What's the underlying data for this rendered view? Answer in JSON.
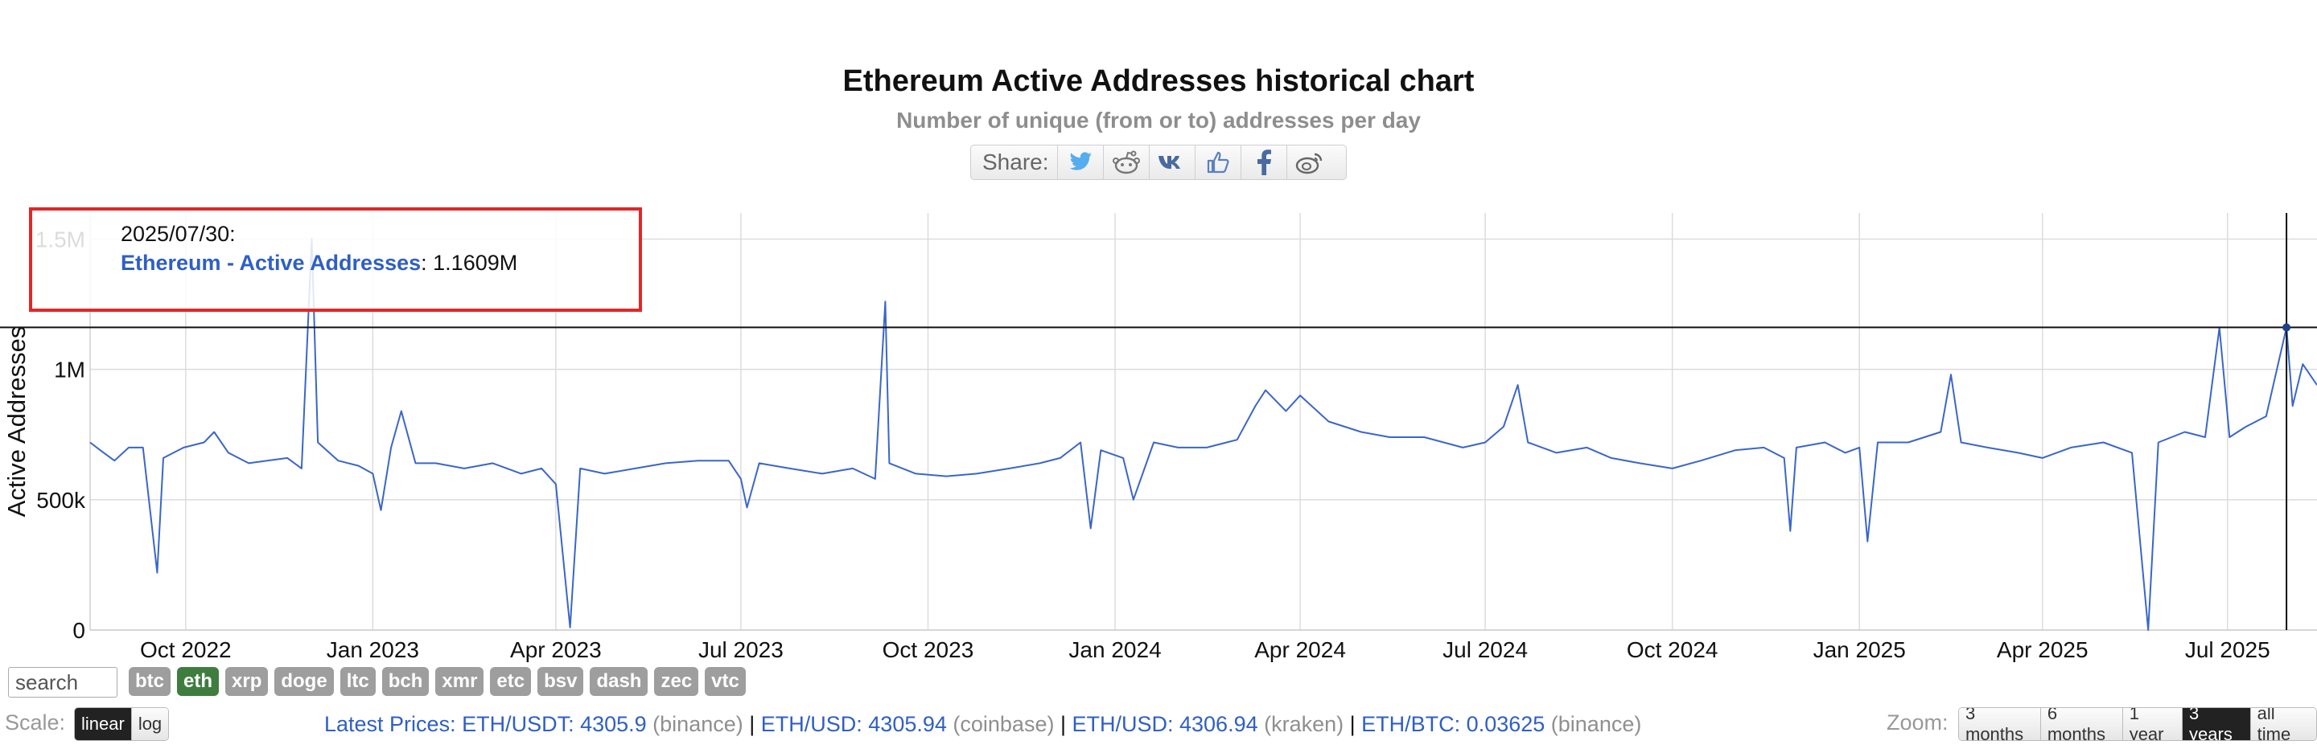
{
  "chart_data": {
    "type": "line",
    "title": "Ethereum Active Addresses historical chart",
    "subtitle": "Number of unique (from or to) addresses per day",
    "ylabel": "Active Addresses",
    "xlabel": "",
    "ylim": [
      0,
      1600000
    ],
    "yticks": [
      {
        "value": 0,
        "label": "0"
      },
      {
        "value": 500000,
        "label": "500k"
      },
      {
        "value": 1000000,
        "label": "1M"
      },
      {
        "value": 1500000,
        "label": "1.5M"
      }
    ],
    "xrange": [
      "2022-08-15",
      "2025-08-14"
    ],
    "xticks": [
      {
        "date": "2022-10-01",
        "label": "Oct 2022"
      },
      {
        "date": "2023-01-01",
        "label": "Jan 2023"
      },
      {
        "date": "2023-04-01",
        "label": "Apr 2023"
      },
      {
        "date": "2023-07-01",
        "label": "Jul 2023"
      },
      {
        "date": "2023-10-01",
        "label": "Oct 2023"
      },
      {
        "date": "2024-01-01",
        "label": "Jan 2024"
      },
      {
        "date": "2024-04-01",
        "label": "Apr 2024"
      },
      {
        "date": "2024-07-01",
        "label": "Jul 2024"
      },
      {
        "date": "2024-10-01",
        "label": "Oct 2024"
      },
      {
        "date": "2025-01-01",
        "label": "Jan 2025"
      },
      {
        "date": "2025-04-01",
        "label": "Apr 2025"
      },
      {
        "date": "2025-07-01",
        "label": "Jul 2025"
      }
    ],
    "grid": true,
    "series": [
      {
        "name": "Ethereum - Active Addresses",
        "color": "#3a66c9",
        "points": [
          [
            "2022-08-15",
            720000
          ],
          [
            "2022-08-20",
            690000
          ],
          [
            "2022-08-27",
            650000
          ],
          [
            "2022-09-03",
            700000
          ],
          [
            "2022-09-10",
            700000
          ],
          [
            "2022-09-17",
            220000
          ],
          [
            "2022-09-20",
            660000
          ],
          [
            "2022-09-30",
            700000
          ],
          [
            "2022-10-10",
            720000
          ],
          [
            "2022-10-15",
            760000
          ],
          [
            "2022-10-22",
            680000
          ],
          [
            "2022-11-01",
            640000
          ],
          [
            "2022-11-10",
            650000
          ],
          [
            "2022-11-20",
            660000
          ],
          [
            "2022-11-27",
            620000
          ],
          [
            "2022-12-02",
            1500000
          ],
          [
            "2022-12-05",
            720000
          ],
          [
            "2022-12-15",
            650000
          ],
          [
            "2022-12-25",
            630000
          ],
          [
            "2023-01-01",
            600000
          ],
          [
            "2023-01-05",
            460000
          ],
          [
            "2023-01-10",
            700000
          ],
          [
            "2023-01-15",
            840000
          ],
          [
            "2023-01-22",
            640000
          ],
          [
            "2023-02-01",
            640000
          ],
          [
            "2023-02-15",
            620000
          ],
          [
            "2023-03-01",
            640000
          ],
          [
            "2023-03-15",
            600000
          ],
          [
            "2023-03-25",
            620000
          ],
          [
            "2023-04-01",
            560000
          ],
          [
            "2023-04-08",
            10000
          ],
          [
            "2023-04-13",
            620000
          ],
          [
            "2023-04-25",
            600000
          ],
          [
            "2023-05-10",
            620000
          ],
          [
            "2023-05-25",
            640000
          ],
          [
            "2023-06-10",
            650000
          ],
          [
            "2023-06-25",
            650000
          ],
          [
            "2023-07-01",
            580000
          ],
          [
            "2023-07-04",
            470000
          ],
          [
            "2023-07-10",
            640000
          ],
          [
            "2023-07-25",
            620000
          ],
          [
            "2023-08-10",
            600000
          ],
          [
            "2023-08-25",
            620000
          ],
          [
            "2023-09-05",
            580000
          ],
          [
            "2023-09-10",
            1260000
          ],
          [
            "2023-09-12",
            640000
          ],
          [
            "2023-09-25",
            600000
          ],
          [
            "2023-10-10",
            590000
          ],
          [
            "2023-10-25",
            600000
          ],
          [
            "2023-11-10",
            620000
          ],
          [
            "2023-11-25",
            640000
          ],
          [
            "2023-12-05",
            660000
          ],
          [
            "2023-12-15",
            720000
          ],
          [
            "2023-12-20",
            390000
          ],
          [
            "2023-12-25",
            690000
          ],
          [
            "2024-01-05",
            660000
          ],
          [
            "2024-01-10",
            500000
          ],
          [
            "2024-01-20",
            720000
          ],
          [
            "2024-02-01",
            700000
          ],
          [
            "2024-02-15",
            700000
          ],
          [
            "2024-03-01",
            730000
          ],
          [
            "2024-03-10",
            860000
          ],
          [
            "2024-03-15",
            920000
          ],
          [
            "2024-03-25",
            840000
          ],
          [
            "2024-04-01",
            900000
          ],
          [
            "2024-04-15",
            800000
          ],
          [
            "2024-05-01",
            760000
          ],
          [
            "2024-05-15",
            740000
          ],
          [
            "2024-06-01",
            740000
          ],
          [
            "2024-06-20",
            700000
          ],
          [
            "2024-07-01",
            720000
          ],
          [
            "2024-07-10",
            780000
          ],
          [
            "2024-07-17",
            940000
          ],
          [
            "2024-07-22",
            720000
          ],
          [
            "2024-08-05",
            680000
          ],
          [
            "2024-08-20",
            700000
          ],
          [
            "2024-09-01",
            660000
          ],
          [
            "2024-09-15",
            640000
          ],
          [
            "2024-10-01",
            620000
          ],
          [
            "2024-10-15",
            650000
          ],
          [
            "2024-11-01",
            690000
          ],
          [
            "2024-11-15",
            700000
          ],
          [
            "2024-11-25",
            660000
          ],
          [
            "2024-11-28",
            380000
          ],
          [
            "2024-12-01",
            700000
          ],
          [
            "2024-12-15",
            720000
          ],
          [
            "2024-12-25",
            680000
          ],
          [
            "2025-01-01",
            700000
          ],
          [
            "2025-01-05",
            340000
          ],
          [
            "2025-01-10",
            720000
          ],
          [
            "2025-01-25",
            720000
          ],
          [
            "2025-02-10",
            760000
          ],
          [
            "2025-02-15",
            980000
          ],
          [
            "2025-02-20",
            720000
          ],
          [
            "2025-03-05",
            700000
          ],
          [
            "2025-03-20",
            680000
          ],
          [
            "2025-04-01",
            660000
          ],
          [
            "2025-04-15",
            700000
          ],
          [
            "2025-05-01",
            720000
          ],
          [
            "2025-05-15",
            680000
          ],
          [
            "2025-05-23",
            0
          ],
          [
            "2025-05-28",
            720000
          ],
          [
            "2025-06-10",
            760000
          ],
          [
            "2025-06-20",
            740000
          ],
          [
            "2025-06-27",
            1160000
          ],
          [
            "2025-07-02",
            740000
          ],
          [
            "2025-07-10",
            780000
          ],
          [
            "2025-07-20",
            820000
          ],
          [
            "2025-07-30",
            1160900
          ],
          [
            "2025-08-02",
            860000
          ],
          [
            "2025-08-07",
            1020000
          ],
          [
            "2025-08-14",
            940000
          ]
        ]
      }
    ],
    "crosshair": {
      "date": "2025-07-30",
      "value": 1160900
    },
    "tooltip": {
      "date": "2025/07/30:",
      "series": "Ethereum - Active Addresses",
      "value": "1.1609M"
    }
  },
  "share": {
    "label": "Share:",
    "buttons": [
      "twitter-icon",
      "reddit-icon",
      "vk-icon",
      "like-icon",
      "facebook-icon",
      "weibo-icon"
    ]
  },
  "controls": {
    "search_placeholder": "search",
    "coins": [
      "btc",
      "eth",
      "xrp",
      "doge",
      "ltc",
      "bch",
      "xmr",
      "etc",
      "bsv",
      "dash",
      "zec",
      "vtc"
    ],
    "active_coin": "eth",
    "scale_label": "Scale:",
    "scale_options": [
      "linear",
      "log"
    ],
    "active_scale": "linear",
    "zoom_label": "Zoom:",
    "zoom_options": [
      "3 months",
      "6 months",
      "1 year",
      "3 years",
      "all time"
    ],
    "active_zoom": "3 years"
  },
  "prices": {
    "intro": "Latest Prices: ",
    "items": [
      {
        "pair": "ETH/USDT: 4305.9",
        "source": "(binance)"
      },
      {
        "pair": "ETH/USD: 4305.94",
        "source": "(coinbase)"
      },
      {
        "pair": "ETH/USD: 4306.94",
        "source": "(kraken)"
      },
      {
        "pair": "ETH/BTC: 0.03625",
        "source": "(binance)"
      }
    ]
  },
  "colors": {
    "line": "#3a66c9",
    "tooltip_border": "#e32626",
    "active_coin": "#3f7d3f",
    "link": "#2f5fc4"
  }
}
